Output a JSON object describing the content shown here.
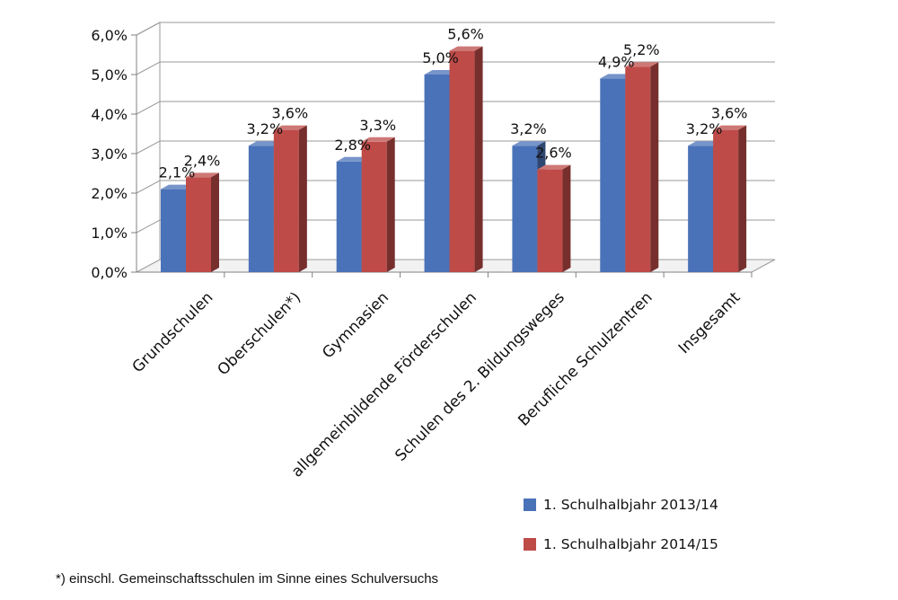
{
  "chart_data": {
    "type": "bar",
    "categories": [
      "Grundschulen",
      "Oberschulen*)",
      "Gymnasien",
      "allgemeinbildende Förderschulen",
      "Schulen des 2. Bildungsweges",
      "Berufliche Schulzentren",
      "Insgesamt"
    ],
    "series": [
      {
        "name": "1. Schulhalbjahr 2013/14",
        "values": [
          2.1,
          3.2,
          2.8,
          5.0,
          3.2,
          4.9,
          3.2
        ],
        "labels": [
          "2,1%",
          "3,2%",
          "2,8%",
          "5,0%",
          "3,2%",
          "4,9%",
          "3,2%"
        ],
        "color": "#4a72b8"
      },
      {
        "name": "1. Schulhalbjahr 2014/15",
        "values": [
          2.4,
          3.6,
          3.3,
          5.6,
          2.6,
          5.2,
          3.6
        ],
        "labels": [
          "2,4%",
          "3,6%",
          "3,3%",
          "5,6%",
          "2,6%",
          "5,2%",
          "3,6%"
        ],
        "color": "#be4b48"
      }
    ],
    "ylim": [
      0,
      6
    ],
    "yticks": [
      0,
      1,
      2,
      3,
      4,
      5,
      6
    ],
    "ytick_labels": [
      "0,0%",
      "1,0%",
      "2,0%",
      "3,0%",
      "4,0%",
      "5,0%",
      "6,0%"
    ],
    "grid": true,
    "legend_position": "bottom-right",
    "three_d": true
  },
  "footnote": "*) einschl. Gemeinschaftsschulen im Sinne eines Schulversuchs"
}
